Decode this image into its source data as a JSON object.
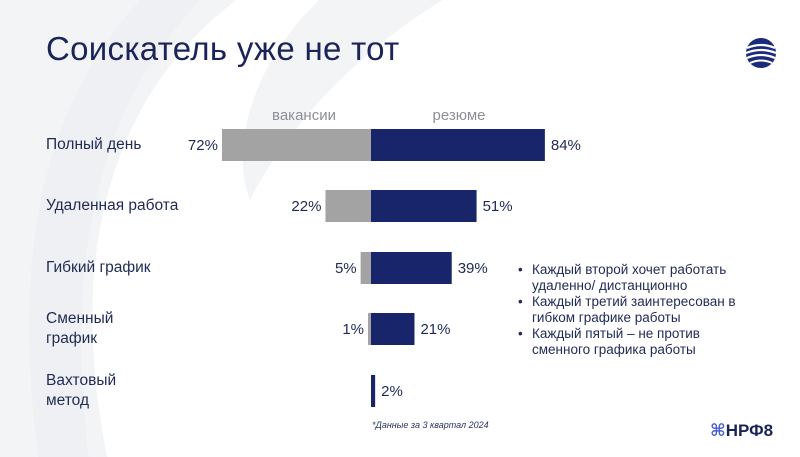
{
  "title": "Соискатель уже не тот",
  "chart_data": {
    "type": "bar",
    "orientation": "horizontal-diverging",
    "series": [
      {
        "name": "вакансии",
        "color": "#a3a3a3",
        "values": [
          72,
          22,
          5,
          1,
          0
        ]
      },
      {
        "name": "резюме",
        "color": "#18256b",
        "values": [
          84,
          51,
          39,
          21,
          2
        ]
      }
    ],
    "categories": [
      "Полный день",
      "Удаленная работа",
      "Гибкий график",
      "Сменный график",
      "Вахтовый метод"
    ],
    "value_labels": {
      "vacancies": [
        "72%",
        "22%",
        "5%",
        "1%",
        ""
      ],
      "resumes": [
        "84%",
        "51%",
        "39%",
        "21%",
        "2%"
      ]
    },
    "legend_placement": "top-center"
  },
  "category_lines": [
    [
      "Полный день"
    ],
    [
      "Удаленная работа"
    ],
    [
      "Гибкий график"
    ],
    [
      "Сменный",
      "график"
    ],
    [
      "Вахтовый",
      "метод"
    ]
  ],
  "bullets": [
    "Каждый второй хочет работать удаленно/ дистанционно",
    "Каждый третий заинтересован в гибком графике работы",
    "Каждый пятый – не против сменного графика работы"
  ],
  "footnote": "*Данные за 3 квартал 2024",
  "brand": {
    "glyph": "⌘",
    "text": "НРФ8"
  },
  "colors": {
    "accent": "#18256b",
    "gray": "#a3a3a3",
    "swoosh": "#f2f3f5"
  }
}
